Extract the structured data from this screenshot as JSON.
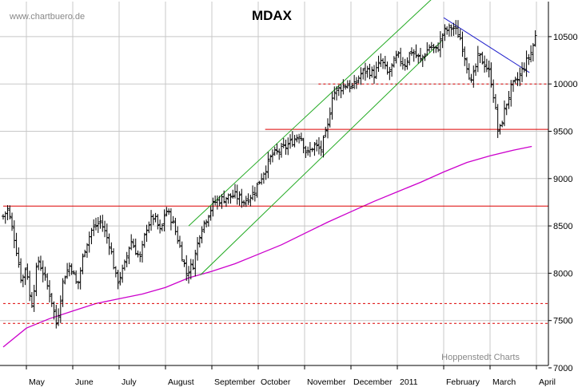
{
  "source_label": "www.chartbuero.de",
  "credit_label": "Hoppenstedt Charts",
  "chart_data": {
    "type": "bar",
    "style": "ohlc-range-bars",
    "title": "MDAX",
    "xlabel": "",
    "ylabel": "",
    "grid": true,
    "ylim": [
      7000,
      10900
    ],
    "yticks": [
      7000,
      7500,
      8000,
      8500,
      9000,
      9500,
      10000,
      10500
    ],
    "xticks": [
      {
        "label": "May",
        "month": 5.0
      },
      {
        "label": "June",
        "month": 6.0
      },
      {
        "label": "July",
        "month": 7.0
      },
      {
        "label": "August",
        "month": 8.0
      },
      {
        "label": "September",
        "month": 9.0
      },
      {
        "label": "October",
        "month": 10.0
      },
      {
        "label": "November",
        "month": 11.0
      },
      {
        "label": "December",
        "month": 12.0
      },
      {
        "label": "2011",
        "month": 13.0
      },
      {
        "label": "February",
        "month": 14.0
      },
      {
        "label": "March",
        "month": 15.0
      },
      {
        "label": "April",
        "month": 16.0
      }
    ],
    "xlim": [
      4.5,
      16.15
    ],
    "price_anchors": [
      {
        "month": 4.5,
        "close": 8600
      },
      {
        "month": 4.6,
        "close": 8680
      },
      {
        "month": 4.75,
        "close": 8350
      },
      {
        "month": 4.9,
        "close": 7900
      },
      {
        "month": 5.0,
        "close": 8100
      },
      {
        "month": 5.1,
        "close": 7620
      },
      {
        "month": 5.25,
        "close": 8150
      },
      {
        "month": 5.4,
        "close": 7950
      },
      {
        "month": 5.55,
        "close": 7700
      },
      {
        "month": 5.65,
        "close": 7450
      },
      {
        "month": 5.8,
        "close": 7950
      },
      {
        "month": 5.95,
        "close": 8100
      },
      {
        "month": 6.1,
        "close": 7850
      },
      {
        "month": 6.25,
        "close": 8250
      },
      {
        "month": 6.4,
        "close": 8450
      },
      {
        "month": 6.6,
        "close": 8550
      },
      {
        "month": 6.8,
        "close": 8300
      },
      {
        "month": 6.95,
        "close": 7900
      },
      {
        "month": 7.1,
        "close": 8050
      },
      {
        "month": 7.25,
        "close": 8350
      },
      {
        "month": 7.45,
        "close": 8150
      },
      {
        "month": 7.6,
        "close": 8500
      },
      {
        "month": 7.75,
        "close": 8600
      },
      {
        "month": 7.9,
        "close": 8420
      },
      {
        "month": 8.0,
        "close": 8680
      },
      {
        "month": 8.15,
        "close": 8550
      },
      {
        "month": 8.3,
        "close": 8300
      },
      {
        "month": 8.45,
        "close": 8000
      },
      {
        "month": 8.6,
        "close": 8100
      },
      {
        "month": 8.75,
        "close": 8450
      },
      {
        "month": 8.9,
        "close": 8600
      },
      {
        "month": 9.05,
        "close": 8750
      },
      {
        "month": 9.3,
        "close": 8800
      },
      {
        "month": 9.5,
        "close": 8820
      },
      {
        "month": 9.7,
        "close": 8760
      },
      {
        "month": 9.9,
        "close": 8850
      },
      {
        "month": 10.1,
        "close": 9050
      },
      {
        "month": 10.3,
        "close": 9250
      },
      {
        "month": 10.5,
        "close": 9300
      },
      {
        "month": 10.7,
        "close": 9380
      },
      {
        "month": 10.9,
        "close": 9480
      },
      {
        "month": 11.05,
        "close": 9250
      },
      {
        "month": 11.2,
        "close": 9350
      },
      {
        "month": 11.35,
        "close": 9300
      },
      {
        "month": 11.5,
        "close": 9550
      },
      {
        "month": 11.6,
        "close": 9900
      },
      {
        "month": 11.75,
        "close": 9950
      },
      {
        "month": 11.9,
        "close": 10000
      },
      {
        "month": 12.05,
        "close": 9960
      },
      {
        "month": 12.2,
        "close": 10100
      },
      {
        "month": 12.35,
        "close": 10150
      },
      {
        "month": 12.5,
        "close": 10100
      },
      {
        "month": 12.65,
        "close": 10250
      },
      {
        "month": 12.8,
        "close": 10100
      },
      {
        "month": 13.0,
        "close": 10300
      },
      {
        "month": 13.15,
        "close": 10200
      },
      {
        "month": 13.3,
        "close": 10350
      },
      {
        "month": 13.5,
        "close": 10250
      },
      {
        "month": 13.7,
        "close": 10400
      },
      {
        "month": 13.85,
        "close": 10350
      },
      {
        "month": 14.0,
        "close": 10550
      },
      {
        "month": 14.2,
        "close": 10600
      },
      {
        "month": 14.35,
        "close": 10500
      },
      {
        "month": 14.5,
        "close": 10200
      },
      {
        "month": 14.6,
        "close": 10000
      },
      {
        "month": 14.75,
        "close": 10300
      },
      {
        "month": 14.9,
        "close": 10200
      },
      {
        "month": 15.0,
        "close": 10100
      },
      {
        "month": 15.1,
        "close": 9800
      },
      {
        "month": 15.18,
        "close": 9450
      },
      {
        "month": 15.3,
        "close": 9700
      },
      {
        "month": 15.45,
        "close": 9950
      },
      {
        "month": 15.6,
        "close": 10050
      },
      {
        "month": 15.75,
        "close": 10200
      },
      {
        "month": 15.9,
        "close": 10350
      },
      {
        "month": 16.0,
        "close": 10550
      }
    ],
    "moving_average": {
      "color": "#cc00cc",
      "points": [
        {
          "month": 4.5,
          "value": 7220
        },
        {
          "month": 5.0,
          "value": 7420
        },
        {
          "month": 5.5,
          "value": 7520
        },
        {
          "month": 6.0,
          "value": 7600
        },
        {
          "month": 6.5,
          "value": 7680
        },
        {
          "month": 7.0,
          "value": 7730
        },
        {
          "month": 7.5,
          "value": 7780
        },
        {
          "month": 8.0,
          "value": 7850
        },
        {
          "month": 8.5,
          "value": 7950
        },
        {
          "month": 9.0,
          "value": 8020
        },
        {
          "month": 9.5,
          "value": 8100
        },
        {
          "month": 10.0,
          "value": 8200
        },
        {
          "month": 10.5,
          "value": 8300
        },
        {
          "month": 11.0,
          "value": 8420
        },
        {
          "month": 11.5,
          "value": 8540
        },
        {
          "month": 12.0,
          "value": 8650
        },
        {
          "month": 12.5,
          "value": 8760
        },
        {
          "month": 13.0,
          "value": 8860
        },
        {
          "month": 13.5,
          "value": 8960
        },
        {
          "month": 14.0,
          "value": 9070
        },
        {
          "month": 14.5,
          "value": 9170
        },
        {
          "month": 15.0,
          "value": 9240
        },
        {
          "month": 15.5,
          "value": 9300
        },
        {
          "month": 15.9,
          "value": 9340
        }
      ]
    },
    "horizontal_lines": [
      {
        "value": 8710,
        "style": "solid",
        "color": "#dd0000",
        "from_month": 4.5
      },
      {
        "value": 9520,
        "style": "solid",
        "color": "#dd0000",
        "from_month": 10.15
      },
      {
        "value": 10000,
        "style": "dashed",
        "color": "#dd0000",
        "from_month": 11.3
      },
      {
        "value": 7680,
        "style": "dashed",
        "color": "#dd0000",
        "from_month": 4.5
      },
      {
        "value": 7470,
        "style": "dashed",
        "color": "#dd0000",
        "from_month": 4.5
      }
    ],
    "trend_lines": [
      {
        "name": "upper-channel",
        "color": "#22aa22",
        "from": {
          "month": 8.5,
          "value": 8500
        },
        "to": {
          "month": 13.75,
          "value": 10900
        }
      },
      {
        "name": "lower-channel",
        "color": "#22aa22",
        "from": {
          "month": 8.75,
          "value": 7980
        },
        "to": {
          "month": 13.95,
          "value": 10450
        }
      },
      {
        "name": "downtrend",
        "color": "#2222cc",
        "from": {
          "month": 14.0,
          "value": 10700
        },
        "to": {
          "month": 15.85,
          "value": 10120
        }
      }
    ],
    "colors": {
      "bars": "#000000",
      "grid": "#c8c8c8",
      "frame": "#000000"
    }
  }
}
